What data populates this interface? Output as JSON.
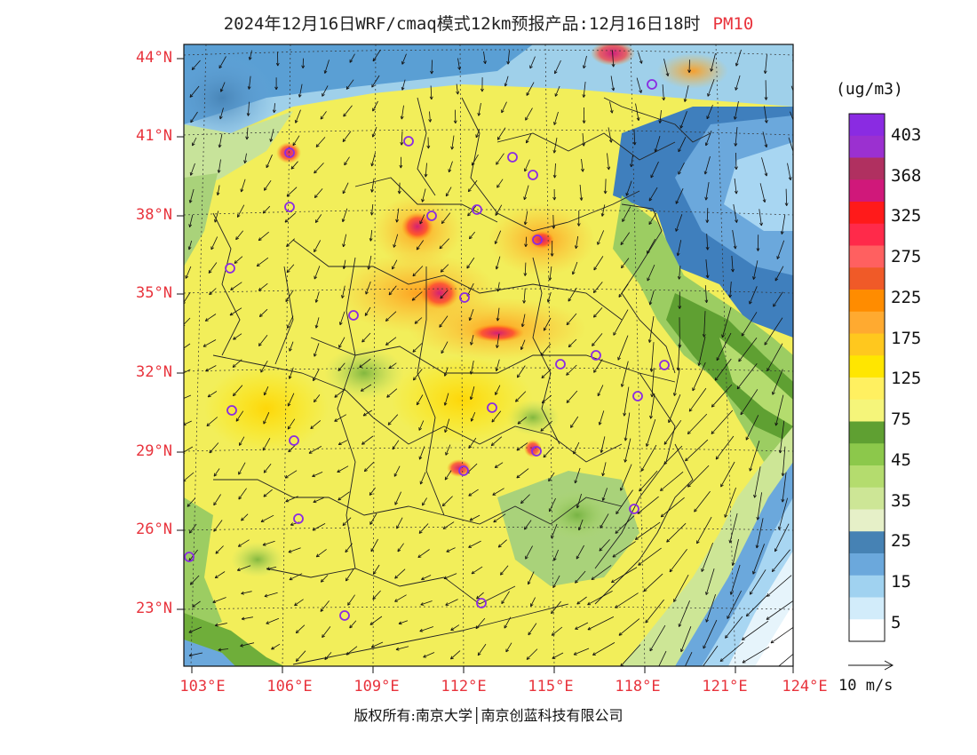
{
  "title": {
    "main": "2024年12月16日WRF/cmaq模式12km预报产品:12月16日18时",
    "variable": "PM10"
  },
  "axes": {
    "lat_labels": [
      "44°N",
      "41°N",
      "38°N",
      "35°N",
      "32°N",
      "29°N",
      "26°N",
      "23°N"
    ],
    "lon_labels": [
      "103°E",
      "106°E",
      "109°E",
      "112°E",
      "115°E",
      "118°E",
      "121°E",
      "124°E"
    ]
  },
  "colorbar": {
    "unit": "(ug/m3)",
    "labels": [
      "403",
      "368",
      "325",
      "275",
      "225",
      "175",
      "125",
      "75",
      "45",
      "35",
      "25",
      "15",
      "5"
    ],
    "colors": [
      "#8a2be2",
      "#9b30d0",
      "#b03060",
      "#d0187a",
      "#ff1a1a",
      "#ff2a4a",
      "#ff6060",
      "#f05a28",
      "#ff8c00",
      "#ffaa30",
      "#ffc81e",
      "#ffe600",
      "#fff060",
      "#f5f57a",
      "#5fa032",
      "#8cc84b",
      "#b4dc6e",
      "#cde696",
      "#e6f0c8",
      "#4682b4",
      "#6ba8dc",
      "#a0d2f0",
      "#d2ecfa",
      "#ffffff"
    ]
  },
  "wind_scale": {
    "label": "10 m/s"
  },
  "footer": {
    "copyright": "版权所有:南京大学│南京创蓝科技有限公司"
  }
}
